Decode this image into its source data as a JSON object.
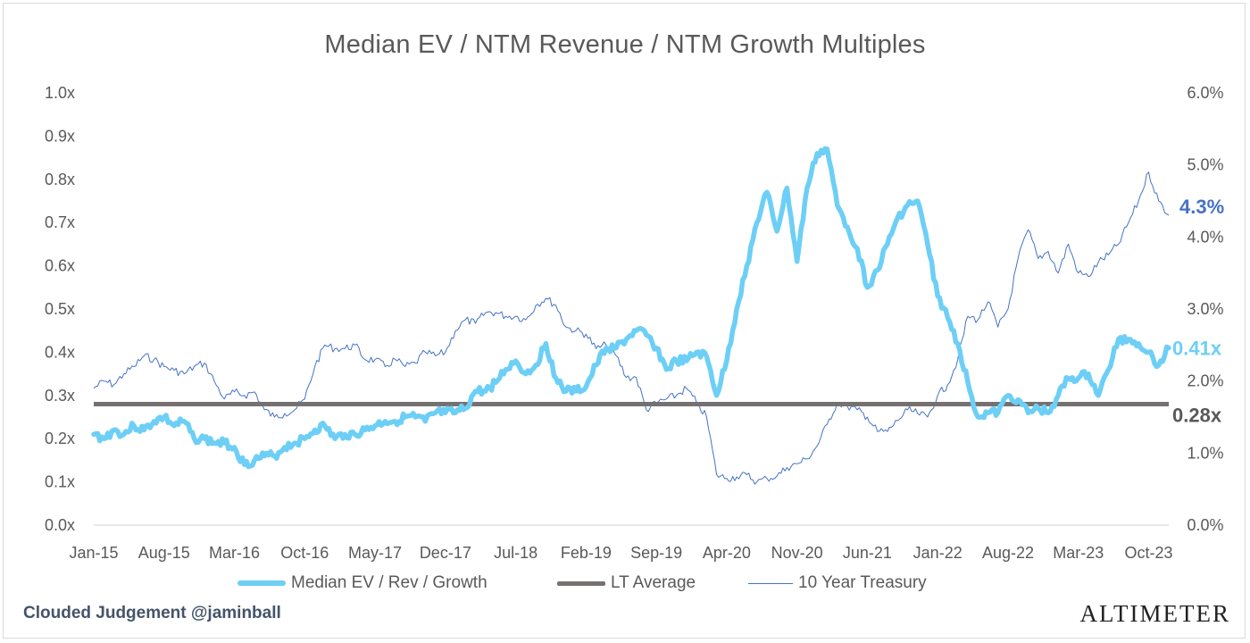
{
  "title": "Median EV / NTM Revenue / NTM Growth Multiples",
  "credit": "Clouded Judgement @jaminball",
  "brand": "ALTIMETER",
  "colors": {
    "median": "#6dcff6",
    "lt_average": "#767171",
    "treasury": "#4472c4",
    "end_label_median": "#6dcff6",
    "end_label_avg": "#595959",
    "end_label_treasury": "#4472c4",
    "axis_text": "#595959",
    "grid_axis": "#d9d9d9"
  },
  "chart_data": {
    "type": "line",
    "title": "Median EV / NTM Revenue / NTM Growth Multiples",
    "x_tick_labels": [
      "Jan-15",
      "Aug-15",
      "Mar-16",
      "Oct-16",
      "May-17",
      "Dec-17",
      "Jul-18",
      "Feb-19",
      "Sep-19",
      "Apr-20",
      "Nov-20",
      "Jun-21",
      "Jan-22",
      "Aug-22",
      "Mar-23",
      "Oct-23"
    ],
    "x_range": [
      "2015-01",
      "2023-12"
    ],
    "left_axis": {
      "range": [
        0,
        1.0
      ],
      "ticks": [
        0.0,
        0.1,
        0.2,
        0.3,
        0.4,
        0.5,
        0.6,
        0.7,
        0.8,
        0.9,
        1.0
      ],
      "tick_labels": [
        "0.0x",
        "0.1x",
        "0.2x",
        "0.3x",
        "0.4x",
        "0.5x",
        "0.6x",
        "0.7x",
        "0.8x",
        "0.9x",
        "1.0x"
      ]
    },
    "right_axis": {
      "range": [
        0,
        6.0
      ],
      "ticks": [
        0,
        1,
        2,
        3,
        4,
        5,
        6
      ],
      "tick_labels": [
        "0.0%",
        "1.0%",
        "2.0%",
        "3.0%",
        "4.0%",
        "5.0%",
        "6.0%"
      ]
    },
    "grid": false,
    "legend_position": "bottom",
    "series": [
      {
        "name": "Median EV / Rev / Growth",
        "axis": "left",
        "style": "thick",
        "end_label": "0.41x",
        "points": [
          [
            "2015-01",
            0.21
          ],
          [
            "2015-02",
            0.2
          ],
          [
            "2015-03",
            0.22
          ],
          [
            "2015-04",
            0.21
          ],
          [
            "2015-05",
            0.23
          ],
          [
            "2015-06",
            0.22
          ],
          [
            "2015-07",
            0.24
          ],
          [
            "2015-08",
            0.25
          ],
          [
            "2015-09",
            0.23
          ],
          [
            "2015-10",
            0.24
          ],
          [
            "2015-11",
            0.2
          ],
          [
            "2015-12",
            0.2
          ],
          [
            "2016-01",
            0.19
          ],
          [
            "2016-02",
            0.19
          ],
          [
            "2016-03",
            0.18
          ],
          [
            "2016-04",
            0.14
          ],
          [
            "2016-05",
            0.15
          ],
          [
            "2016-06",
            0.16
          ],
          [
            "2016-07",
            0.16
          ],
          [
            "2016-08",
            0.18
          ],
          [
            "2016-09",
            0.19
          ],
          [
            "2016-10",
            0.2
          ],
          [
            "2016-11",
            0.22
          ],
          [
            "2016-12",
            0.23
          ],
          [
            "2017-01",
            0.2
          ],
          [
            "2017-02",
            0.21
          ],
          [
            "2017-03",
            0.21
          ],
          [
            "2017-04",
            0.22
          ],
          [
            "2017-05",
            0.23
          ],
          [
            "2017-06",
            0.24
          ],
          [
            "2017-07",
            0.24
          ],
          [
            "2017-08",
            0.25
          ],
          [
            "2017-09",
            0.25
          ],
          [
            "2017-10",
            0.24
          ],
          [
            "2017-11",
            0.26
          ],
          [
            "2017-12",
            0.26
          ],
          [
            "2018-01",
            0.26
          ],
          [
            "2018-02",
            0.27
          ],
          [
            "2018-03",
            0.31
          ],
          [
            "2018-04",
            0.31
          ],
          [
            "2018-05",
            0.33
          ],
          [
            "2018-06",
            0.36
          ],
          [
            "2018-07",
            0.38
          ],
          [
            "2018-08",
            0.35
          ],
          [
            "2018-09",
            0.37
          ],
          [
            "2018-10",
            0.42
          ],
          [
            "2018-11",
            0.34
          ],
          [
            "2018-12",
            0.31
          ],
          [
            "2019-01",
            0.31
          ],
          [
            "2019-02",
            0.32
          ],
          [
            "2019-03",
            0.37
          ],
          [
            "2019-04",
            0.41
          ],
          [
            "2019-05",
            0.41
          ],
          [
            "2019-06",
            0.43
          ],
          [
            "2019-07",
            0.45
          ],
          [
            "2019-08",
            0.44
          ],
          [
            "2019-09",
            0.41
          ],
          [
            "2019-10",
            0.36
          ],
          [
            "2019-11",
            0.38
          ],
          [
            "2019-12",
            0.38
          ],
          [
            "2020-01",
            0.4
          ],
          [
            "2020-02",
            0.39
          ],
          [
            "2020-03",
            0.3
          ],
          [
            "2020-04",
            0.38
          ],
          [
            "2020-05",
            0.5
          ],
          [
            "2020-06",
            0.6
          ],
          [
            "2020-07",
            0.7
          ],
          [
            "2020-08",
            0.77
          ],
          [
            "2020-09",
            0.68
          ],
          [
            "2020-10",
            0.78
          ],
          [
            "2020-11",
            0.61
          ],
          [
            "2020-12",
            0.78
          ],
          [
            "2021-01",
            0.86
          ],
          [
            "2021-02",
            0.87
          ],
          [
            "2021-03",
            0.74
          ],
          [
            "2021-04",
            0.69
          ],
          [
            "2021-05",
            0.64
          ],
          [
            "2021-06",
            0.55
          ],
          [
            "2021-07",
            0.59
          ],
          [
            "2021-08",
            0.65
          ],
          [
            "2021-09",
            0.71
          ],
          [
            "2021-10",
            0.74
          ],
          [
            "2021-11",
            0.75
          ],
          [
            "2021-12",
            0.65
          ],
          [
            "2022-01",
            0.53
          ],
          [
            "2022-02",
            0.48
          ],
          [
            "2022-03",
            0.42
          ],
          [
            "2022-04",
            0.33
          ],
          [
            "2022-05",
            0.25
          ],
          [
            "2022-06",
            0.26
          ],
          [
            "2022-07",
            0.26
          ],
          [
            "2022-08",
            0.3
          ],
          [
            "2022-09",
            0.29
          ],
          [
            "2022-10",
            0.26
          ],
          [
            "2022-11",
            0.27
          ],
          [
            "2022-12",
            0.26
          ],
          [
            "2023-01",
            0.3
          ],
          [
            "2023-02",
            0.34
          ],
          [
            "2023-03",
            0.34
          ],
          [
            "2023-04",
            0.35
          ],
          [
            "2023-05",
            0.3
          ],
          [
            "2023-06",
            0.36
          ],
          [
            "2023-07",
            0.43
          ],
          [
            "2023-08",
            0.43
          ],
          [
            "2023-09",
            0.42
          ],
          [
            "2023-10",
            0.4
          ],
          [
            "2023-11",
            0.37
          ],
          [
            "2023-12",
            0.41
          ]
        ]
      },
      {
        "name": "LT Average",
        "axis": "left",
        "style": "flat",
        "end_label": "0.28x",
        "points": [
          [
            "2015-01",
            0.28
          ],
          [
            "2023-12",
            0.28
          ]
        ]
      },
      {
        "name": "10 Year Treasury",
        "axis": "right",
        "style": "thin",
        "end_label": "4.3%",
        "points": [
          [
            "2015-01",
            1.9
          ],
          [
            "2015-02",
            2.0
          ],
          [
            "2015-03",
            1.95
          ],
          [
            "2015-04",
            2.1
          ],
          [
            "2015-05",
            2.2
          ],
          [
            "2015-06",
            2.35
          ],
          [
            "2015-07",
            2.3
          ],
          [
            "2015-08",
            2.2
          ],
          [
            "2015-09",
            2.15
          ],
          [
            "2015-10",
            2.1
          ],
          [
            "2015-11",
            2.2
          ],
          [
            "2015-12",
            2.25
          ],
          [
            "2016-01",
            2.0
          ],
          [
            "2016-02",
            1.75
          ],
          [
            "2016-03",
            1.85
          ],
          [
            "2016-04",
            1.8
          ],
          [
            "2016-05",
            1.85
          ],
          [
            "2016-06",
            1.6
          ],
          [
            "2016-07",
            1.5
          ],
          [
            "2016-08",
            1.55
          ],
          [
            "2016-09",
            1.6
          ],
          [
            "2016-10",
            1.75
          ],
          [
            "2016-11",
            2.2
          ],
          [
            "2016-12",
            2.5
          ],
          [
            "2017-01",
            2.45
          ],
          [
            "2017-02",
            2.45
          ],
          [
            "2017-03",
            2.5
          ],
          [
            "2017-04",
            2.3
          ],
          [
            "2017-05",
            2.3
          ],
          [
            "2017-06",
            2.2
          ],
          [
            "2017-07",
            2.3
          ],
          [
            "2017-08",
            2.2
          ],
          [
            "2017-09",
            2.25
          ],
          [
            "2017-10",
            2.4
          ],
          [
            "2017-11",
            2.35
          ],
          [
            "2017-12",
            2.4
          ],
          [
            "2018-01",
            2.7
          ],
          [
            "2018-02",
            2.85
          ],
          [
            "2018-03",
            2.8
          ],
          [
            "2018-04",
            2.95
          ],
          [
            "2018-05",
            2.95
          ],
          [
            "2018-06",
            2.9
          ],
          [
            "2018-07",
            2.9
          ],
          [
            "2018-08",
            2.85
          ],
          [
            "2018-09",
            3.05
          ],
          [
            "2018-10",
            3.15
          ],
          [
            "2018-11",
            3.05
          ],
          [
            "2018-12",
            2.75
          ],
          [
            "2019-01",
            2.7
          ],
          [
            "2019-02",
            2.65
          ],
          [
            "2019-03",
            2.45
          ],
          [
            "2019-04",
            2.5
          ],
          [
            "2019-05",
            2.35
          ],
          [
            "2019-06",
            2.05
          ],
          [
            "2019-07",
            2.05
          ],
          [
            "2019-08",
            1.6
          ],
          [
            "2019-09",
            1.7
          ],
          [
            "2019-10",
            1.75
          ],
          [
            "2019-11",
            1.8
          ],
          [
            "2019-12",
            1.9
          ],
          [
            "2020-01",
            1.7
          ],
          [
            "2020-02",
            1.5
          ],
          [
            "2020-03",
            0.7
          ],
          [
            "2020-04",
            0.65
          ],
          [
            "2020-05",
            0.67
          ],
          [
            "2020-06",
            0.7
          ],
          [
            "2020-07",
            0.6
          ],
          [
            "2020-08",
            0.65
          ],
          [
            "2020-09",
            0.68
          ],
          [
            "2020-10",
            0.8
          ],
          [
            "2020-11",
            0.85
          ],
          [
            "2020-12",
            0.92
          ],
          [
            "2021-01",
            1.1
          ],
          [
            "2021-02",
            1.4
          ],
          [
            "2021-03",
            1.7
          ],
          [
            "2021-04",
            1.65
          ],
          [
            "2021-05",
            1.6
          ],
          [
            "2021-06",
            1.5
          ],
          [
            "2021-07",
            1.3
          ],
          [
            "2021-08",
            1.3
          ],
          [
            "2021-09",
            1.45
          ],
          [
            "2021-10",
            1.6
          ],
          [
            "2021-11",
            1.55
          ],
          [
            "2021-12",
            1.5
          ],
          [
            "2022-01",
            1.8
          ],
          [
            "2022-02",
            1.95
          ],
          [
            "2022-03",
            2.3
          ],
          [
            "2022-04",
            2.9
          ],
          [
            "2022-05",
            2.85
          ],
          [
            "2022-06",
            3.1
          ],
          [
            "2022-07",
            2.75
          ],
          [
            "2022-08",
            3.0
          ],
          [
            "2022-09",
            3.7
          ],
          [
            "2022-10",
            4.1
          ],
          [
            "2022-11",
            3.7
          ],
          [
            "2022-12",
            3.8
          ],
          [
            "2023-01",
            3.5
          ],
          [
            "2023-02",
            3.9
          ],
          [
            "2023-03",
            3.5
          ],
          [
            "2023-04",
            3.45
          ],
          [
            "2023-05",
            3.65
          ],
          [
            "2023-06",
            3.75
          ],
          [
            "2023-07",
            3.9
          ],
          [
            "2023-08",
            4.2
          ],
          [
            "2023-09",
            4.5
          ],
          [
            "2023-10",
            4.9
          ],
          [
            "2023-11",
            4.5
          ],
          [
            "2023-12",
            4.3
          ]
        ]
      }
    ]
  },
  "legend": [
    {
      "label": "Median EV / Rev / Growth"
    },
    {
      "label": "LT Average"
    },
    {
      "label": "10 Year Treasury"
    }
  ]
}
